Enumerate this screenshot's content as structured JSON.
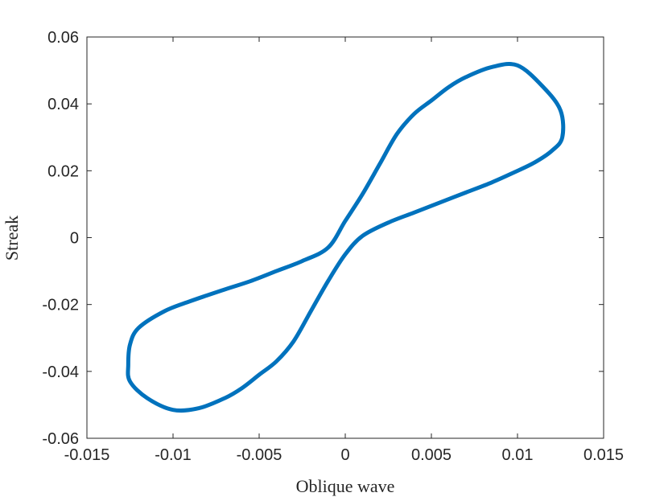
{
  "chart_data": {
    "type": "line",
    "title": "",
    "xlabel": "Oblique wave",
    "ylabel": "Streak",
    "xlim": [
      -0.015,
      0.015
    ],
    "ylim": [
      -0.06,
      0.06
    ],
    "xticks": [
      -0.015,
      -0.01,
      -0.005,
      0,
      0.005,
      0.01,
      0.015
    ],
    "xtick_labels": [
      "-0.015",
      "-0.01",
      "-0.005",
      "0",
      "0.005",
      "0.01",
      "0.015"
    ],
    "yticks": [
      -0.06,
      -0.04,
      -0.02,
      0,
      0.02,
      0.04,
      0.06
    ],
    "ytick_labels": [
      "-0.06",
      "-0.04",
      "-0.02",
      "0",
      "0.02",
      "0.04",
      "0.06"
    ],
    "grid": false,
    "legend": "none",
    "series": [
      {
        "color": "#0072BD",
        "x": [
          0.0126,
          0.012,
          0.011,
          0.0098,
          0.0085,
          0.007,
          0.0055,
          0.004,
          0.0025,
          0.001,
          0.0,
          -0.001,
          -0.002,
          -0.003,
          -0.004,
          -0.005,
          -0.006,
          -0.007,
          -0.0085,
          -0.01,
          -0.0115,
          -0.0125,
          -0.0126,
          -0.0125,
          -0.012,
          -0.0105,
          -0.009,
          -0.007,
          -0.0055,
          -0.004,
          -0.0025,
          -0.001,
          0.0,
          0.001,
          0.002,
          0.003,
          0.004,
          0.005,
          0.006,
          0.007,
          0.0085,
          0.01,
          0.0115,
          0.0125,
          0.0126
        ],
        "y": [
          0.03,
          0.026,
          0.0225,
          0.0195,
          0.0165,
          0.0135,
          0.0105,
          0.0075,
          0.0045,
          0.0005,
          -0.005,
          -0.013,
          -0.022,
          -0.031,
          -0.037,
          -0.041,
          -0.045,
          -0.048,
          -0.051,
          -0.0515,
          -0.048,
          -0.043,
          -0.038,
          -0.032,
          -0.027,
          -0.022,
          -0.019,
          -0.0155,
          -0.013,
          -0.01,
          -0.007,
          -0.003,
          0.005,
          0.013,
          0.022,
          0.031,
          0.037,
          0.041,
          0.045,
          0.048,
          0.051,
          0.0515,
          0.045,
          0.038,
          0.03
        ]
      }
    ]
  }
}
